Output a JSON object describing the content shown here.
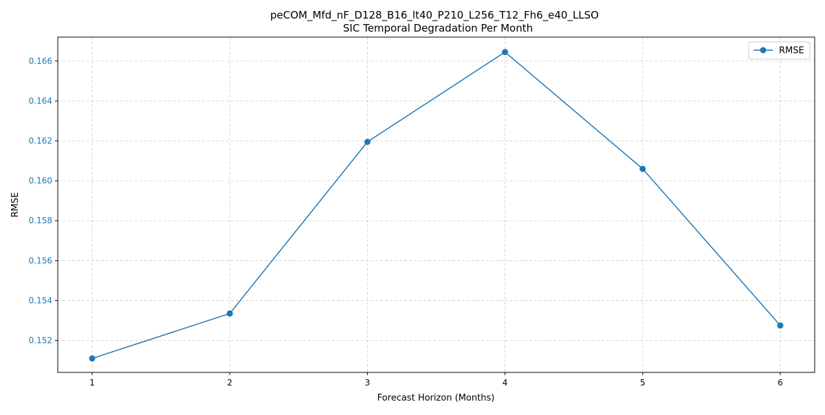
{
  "chart_data": {
    "type": "line",
    "title": "peCOM_Mfd_nF_D128_B16_lt40_P210_L256_T12_Fh6_e40_LLSO",
    "subtitle": "SIC Temporal Degradation Per Month",
    "xlabel": "Forecast Horizon (Months)",
    "ylabel": "RMSE",
    "x": [
      1,
      2,
      3,
      4,
      5,
      6
    ],
    "xlim": [
      0.75,
      6.25
    ],
    "ylim": [
      0.1504,
      0.1672
    ],
    "xticks": [
      1,
      2,
      3,
      4,
      5,
      6
    ],
    "yticks": [
      0.152,
      0.154,
      0.156,
      0.158,
      0.16,
      0.162,
      0.164,
      0.166
    ],
    "ytick_labels": [
      "0.152",
      "0.154",
      "0.156",
      "0.158",
      "0.160",
      "0.162",
      "0.164",
      "0.166"
    ],
    "series": [
      {
        "name": "RMSE",
        "values": [
          0.1511,
          0.15335,
          0.16195,
          0.16645,
          0.1606,
          0.15275
        ],
        "color": "#1f77b4",
        "marker": "circle"
      }
    ],
    "grid": true,
    "grid_style": "dashed",
    "legend_position": "top-right",
    "ytick_color": "#1f77b4"
  }
}
